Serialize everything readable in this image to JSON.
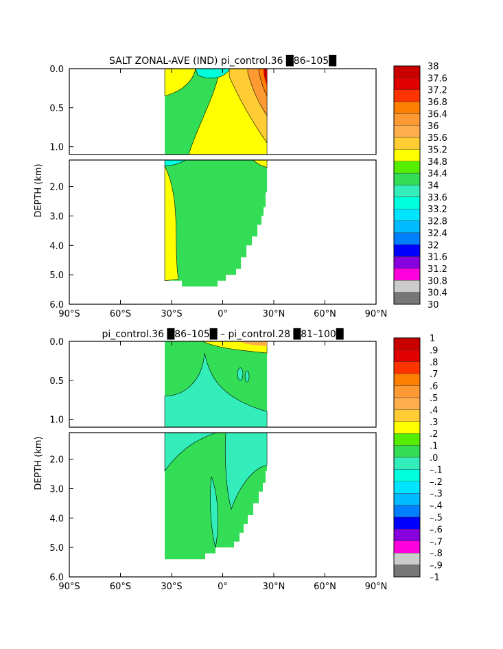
{
  "chart_data": [
    {
      "type": "heatmap",
      "title": "SALT ZONAL-AVE (IND) pi_control.36 █86–105█",
      "ylabel": "DEPTH (km)",
      "x_ticks": [
        "90°S",
        "60°S",
        "30°S",
        "0°",
        "30°N",
        "60°N",
        "90°N"
      ],
      "x_tick_values": [
        -90,
        -60,
        -30,
        0,
        30,
        60,
        90
      ],
      "y_ticks_upper": [
        "0.0",
        "0.5",
        "1.0"
      ],
      "y_ticks_upper_values": [
        0.0,
        0.5,
        1.0
      ],
      "y_ticks_lower": [
        "2.0",
        "3.0",
        "4.0",
        "5.0",
        "6.0"
      ],
      "y_ticks_lower_values": [
        2,
        3,
        4,
        5,
        6
      ],
      "xlim": [
        -90,
        90
      ],
      "ylim_upper": [
        0,
        1.1
      ],
      "ylim_lower": [
        1.1,
        6
      ],
      "data_lat_range": [
        -34,
        26
      ],
      "colorbar": {
        "labels": [
          "38",
          "37.6",
          "37.2",
          "36.8",
          "36.4",
          "36",
          "35.6",
          "35.2",
          "34.8",
          "34.4",
          "34",
          "33.6",
          "33.2",
          "32.8",
          "32.4",
          "32",
          "31.6",
          "31.2",
          "30.8",
          "30.4",
          "30"
        ],
        "colors": [
          "#c80000",
          "#e00000",
          "#ff3300",
          "#ff8000",
          "#ff9a33",
          "#ffae4d",
          "#ffcc33",
          "#ffff00",
          "#55ee00",
          "#33dd55",
          "#33eebb",
          "#00ffdd",
          "#00e5ff",
          "#00bbff",
          "#0080ff",
          "#0000ff",
          "#8800dd",
          "#ff00dd",
          "#cccccc",
          "#777777"
        ]
      },
      "legend": "right"
    },
    {
      "type": "heatmap",
      "title": "pi_control.36 █86–105█ – pi_control.28 █81–100█",
      "ylabel": "DEPTH (km)",
      "x_ticks": [
        "90°S",
        "60°S",
        "30°S",
        "0°",
        "30°N",
        "60°N",
        "90°N"
      ],
      "x_tick_values": [
        -90,
        -60,
        -30,
        0,
        30,
        60,
        90
      ],
      "y_ticks_upper": [
        "0.0",
        "0.5",
        "1.0"
      ],
      "y_ticks_upper_values": [
        0.0,
        0.5,
        1.0
      ],
      "y_ticks_lower": [
        "2.0",
        "3.0",
        "4.0",
        "5.0",
        "6.0"
      ],
      "y_ticks_lower_values": [
        2,
        3,
        4,
        5,
        6
      ],
      "xlim": [
        -90,
        90
      ],
      "ylim_upper": [
        0,
        1.1
      ],
      "ylim_lower": [
        1.1,
        6
      ],
      "data_lat_range": [
        -34,
        26
      ],
      "colorbar": {
        "labels": [
          "1",
          ".9",
          ".8",
          ".7",
          ".6",
          ".5",
          ".4",
          ".3",
          ".2",
          ".1",
          ".0",
          "–.1",
          "–.2",
          "–.3",
          "–.4",
          "–.5",
          "–.6",
          "–.7",
          "–.8",
          "–.9",
          "–1"
        ],
        "colors": [
          "#c80000",
          "#e00000",
          "#ff3300",
          "#ff8000",
          "#ff9a33",
          "#ffae4d",
          "#ffcc33",
          "#ffff00",
          "#55ee00",
          "#33dd55",
          "#33eebb",
          "#00ffdd",
          "#00e5ff",
          "#00bbff",
          "#0080ff",
          "#0000ff",
          "#8800dd",
          "#ff00dd",
          "#cccccc",
          "#777777"
        ]
      },
      "legend": "right"
    }
  ]
}
